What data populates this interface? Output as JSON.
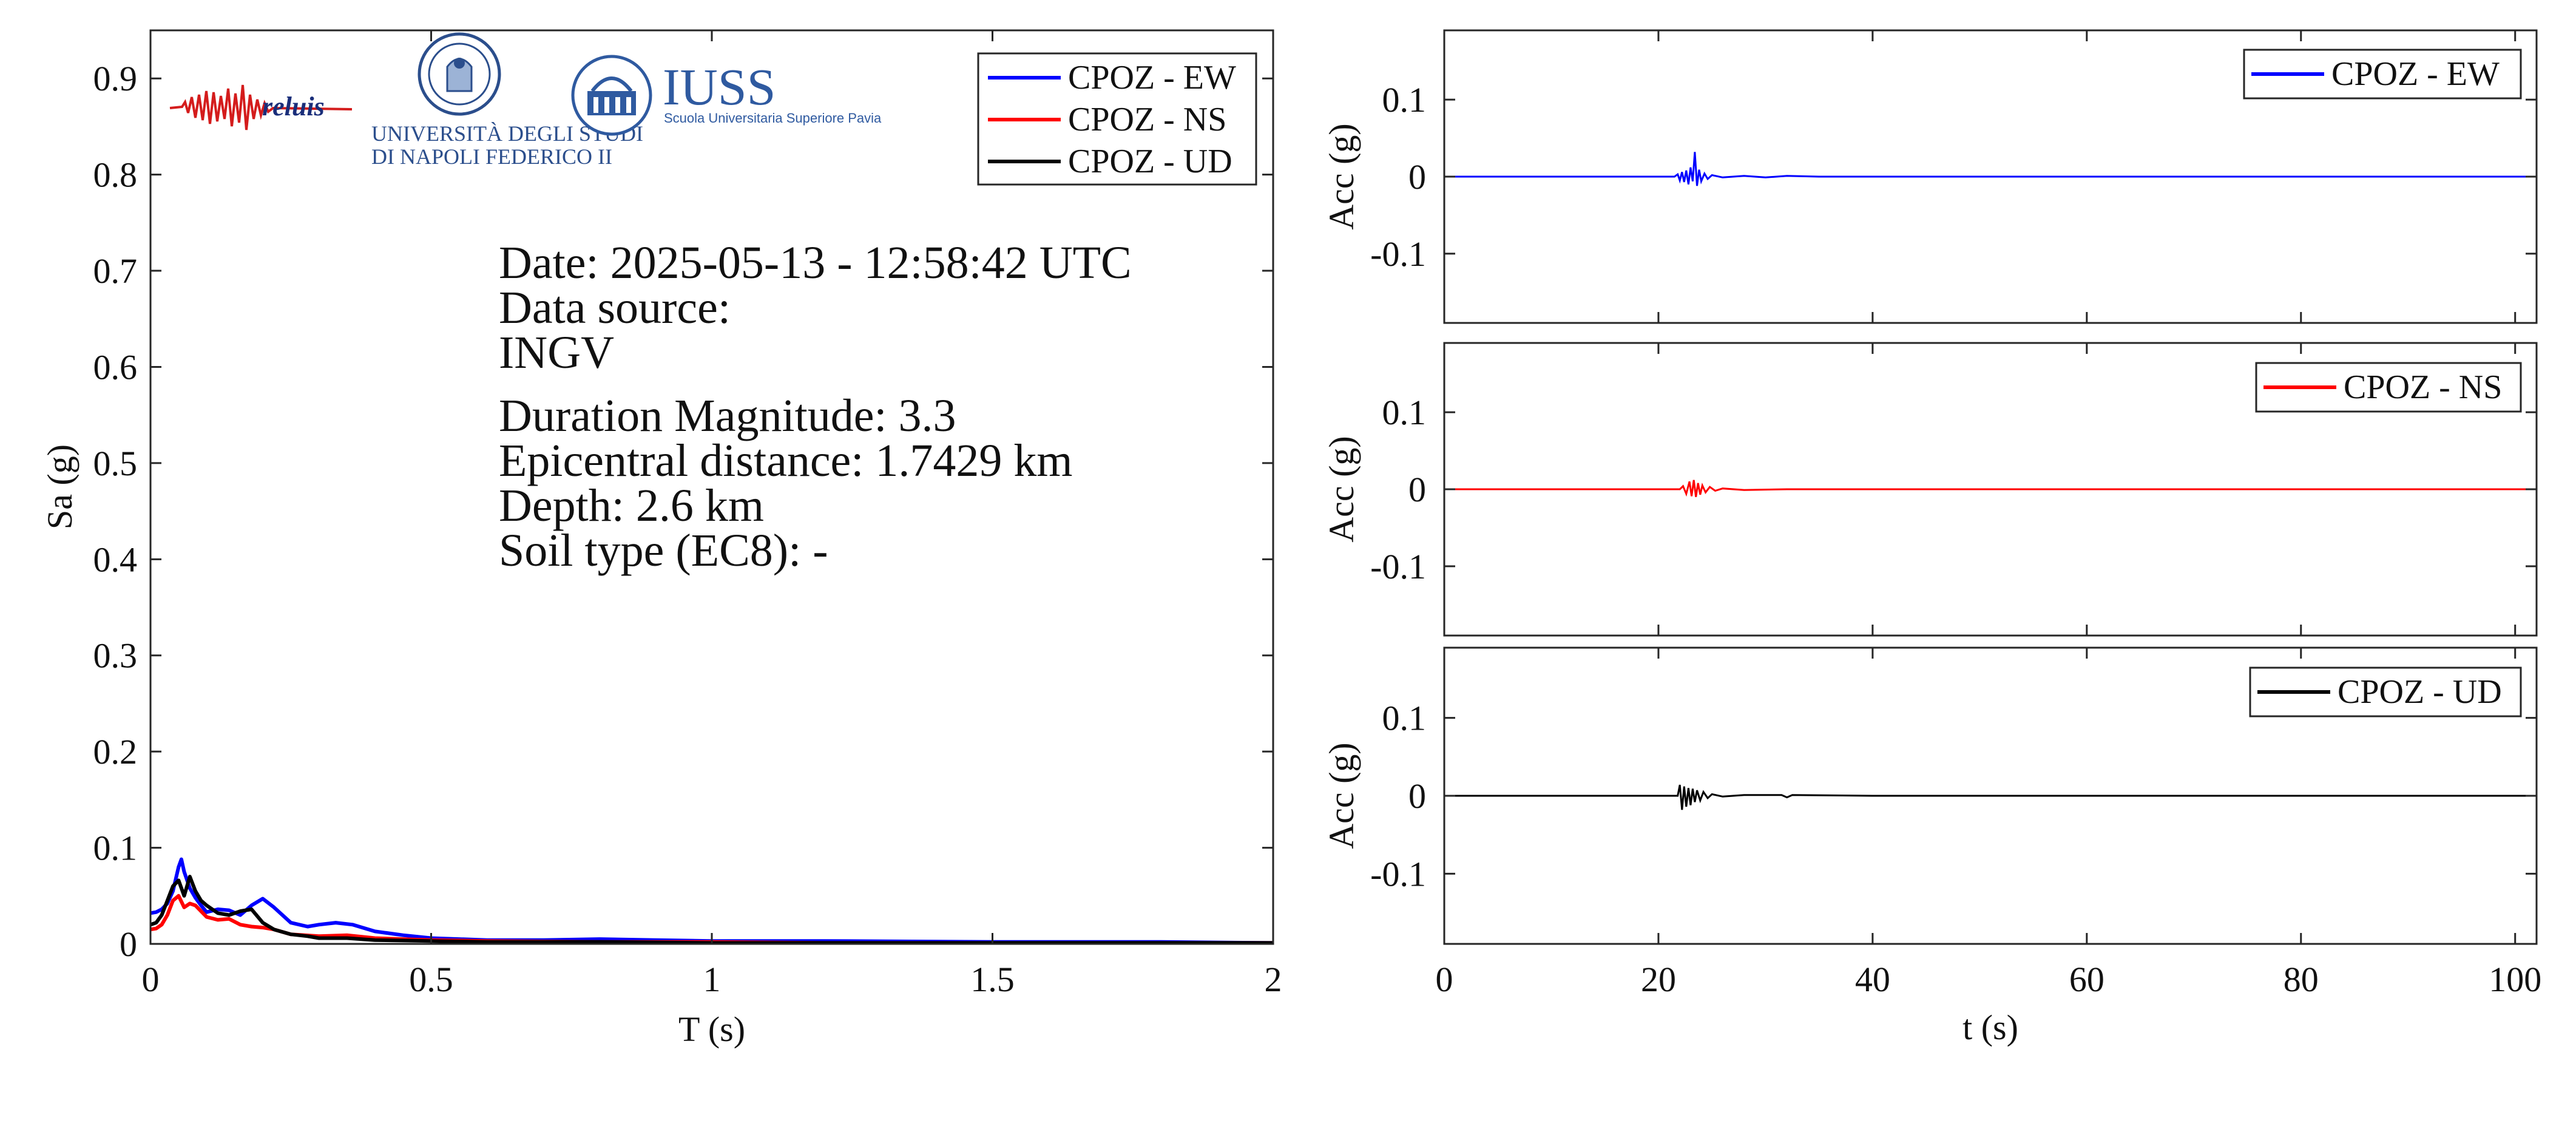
{
  "chart_data": [
    {
      "type": "line",
      "xlabel": "T (s)",
      "ylabel": "Sa (g)",
      "xlim": [
        0,
        2
      ],
      "ylim": [
        0,
        0.95
      ],
      "xticks": [
        {
          "v": 0,
          "label": "0"
        },
        {
          "v": 0.5,
          "label": "0.5"
        },
        {
          "v": 1,
          "label": "1"
        },
        {
          "v": 1.5,
          "label": "1.5"
        },
        {
          "v": 2,
          "label": "2"
        }
      ],
      "yticks": [
        {
          "v": 0,
          "label": "0"
        },
        {
          "v": 0.1,
          "label": "0.1"
        },
        {
          "v": 0.2,
          "label": "0.2"
        },
        {
          "v": 0.3,
          "label": "0.3"
        },
        {
          "v": 0.4,
          "label": "0.4"
        },
        {
          "v": 0.5,
          "label": "0.5"
        },
        {
          "v": 0.6,
          "label": "0.6"
        },
        {
          "v": 0.7,
          "label": "0.7"
        },
        {
          "v": 0.8,
          "label": "0.8"
        },
        {
          "v": 0.9,
          "label": "0.9"
        }
      ],
      "legend": "top-right",
      "grid": false,
      "series": [
        {
          "name": "CPOZ - EW",
          "color": "#0000ff",
          "x": [
            0,
            0.01,
            0.02,
            0.03,
            0.04,
            0.05,
            0.055,
            0.06,
            0.07,
            0.08,
            0.09,
            0.1,
            0.12,
            0.14,
            0.16,
            0.18,
            0.2,
            0.22,
            0.25,
            0.28,
            0.3,
            0.33,
            0.36,
            0.4,
            0.45,
            0.5,
            0.6,
            0.7,
            0.8,
            0.9,
            1.0,
            1.2,
            1.5,
            1.8,
            2.0
          ],
          "y": [
            0.032,
            0.033,
            0.036,
            0.042,
            0.055,
            0.08,
            0.088,
            0.075,
            0.058,
            0.048,
            0.04,
            0.033,
            0.036,
            0.035,
            0.03,
            0.04,
            0.047,
            0.038,
            0.022,
            0.018,
            0.02,
            0.022,
            0.02,
            0.013,
            0.009,
            0.006,
            0.004,
            0.004,
            0.005,
            0.004,
            0.003,
            0.003,
            0.002,
            0.002,
            0.001
          ]
        },
        {
          "name": "CPOZ - NS",
          "color": "#ff0000",
          "x": [
            0,
            0.01,
            0.02,
            0.03,
            0.04,
            0.05,
            0.06,
            0.07,
            0.08,
            0.09,
            0.1,
            0.12,
            0.14,
            0.16,
            0.18,
            0.2,
            0.22,
            0.25,
            0.3,
            0.35,
            0.4,
            0.5,
            0.6,
            0.8,
            1.0,
            1.2,
            1.5,
            2.0
          ],
          "y": [
            0.015,
            0.016,
            0.02,
            0.03,
            0.045,
            0.05,
            0.038,
            0.042,
            0.04,
            0.034,
            0.028,
            0.025,
            0.026,
            0.02,
            0.018,
            0.017,
            0.015,
            0.01,
            0.008,
            0.009,
            0.006,
            0.004,
            0.003,
            0.002,
            0.002,
            0.001,
            0.001,
            0.001
          ]
        },
        {
          "name": "CPOZ - UD",
          "color": "#000000",
          "x": [
            0,
            0.01,
            0.02,
            0.03,
            0.04,
            0.05,
            0.06,
            0.07,
            0.08,
            0.09,
            0.1,
            0.12,
            0.14,
            0.16,
            0.18,
            0.2,
            0.22,
            0.25,
            0.28,
            0.3,
            0.35,
            0.4,
            0.5,
            0.6,
            0.8,
            1.0,
            1.5,
            2.0
          ],
          "y": [
            0.02,
            0.022,
            0.03,
            0.045,
            0.06,
            0.066,
            0.05,
            0.07,
            0.055,
            0.045,
            0.04,
            0.032,
            0.03,
            0.034,
            0.036,
            0.022,
            0.015,
            0.01,
            0.008,
            0.006,
            0.006,
            0.004,
            0.003,
            0.002,
            0.002,
            0.001,
            0.001,
            0.001
          ]
        }
      ]
    },
    {
      "type": "line",
      "xlabel": "",
      "ylabel": "Acc (g)",
      "xlim": [
        0,
        102
      ],
      "ylim": [
        -0.19,
        0.19
      ],
      "yticks": [
        {
          "v": 0.1,
          "label": "0.1"
        },
        {
          "v": 0,
          "label": "0"
        },
        {
          "v": -0.1,
          "label": "-0.1"
        }
      ],
      "legend": "top-right",
      "series": [
        {
          "name": "CPOZ - EW",
          "color": "#0000ff",
          "t": [
            0,
            21.5,
            21.8,
            22.0,
            22.2,
            22.4,
            22.6,
            22.8,
            23.0,
            23.2,
            23.4,
            23.6,
            23.8,
            24.0,
            24.3,
            24.6,
            25.0,
            26.0,
            28.0,
            30.0,
            32.0,
            35.0,
            40.0,
            50.0,
            60.0,
            80.0,
            102.0
          ],
          "a": [
            0,
            0,
            0.003,
            -0.005,
            0.006,
            -0.007,
            0.008,
            -0.01,
            0.012,
            -0.006,
            0.032,
            -0.012,
            0.009,
            -0.006,
            0.004,
            -0.003,
            0.002,
            -0.001,
            0.001,
            -0.001,
            0.001,
            0,
            0,
            0,
            0,
            0,
            0
          ]
        }
      ]
    },
    {
      "type": "line",
      "xlabel": "",
      "ylabel": "Acc (g)",
      "xlim": [
        0,
        102
      ],
      "ylim": [
        -0.19,
        0.19
      ],
      "yticks": [
        {
          "v": 0.1,
          "label": "0.1"
        },
        {
          "v": 0,
          "label": "0"
        },
        {
          "v": -0.1,
          "label": "-0.1"
        }
      ],
      "legend": "top-right",
      "series": [
        {
          "name": "CPOZ - NS",
          "color": "#ff0000",
          "t": [
            0,
            22.0,
            22.3,
            22.6,
            22.9,
            23.1,
            23.3,
            23.5,
            23.7,
            23.9,
            24.1,
            24.4,
            24.8,
            25.3,
            26.0,
            28.0,
            32.0,
            40.0,
            60.0,
            80.0,
            102.0
          ],
          "a": [
            0,
            0,
            0.004,
            -0.006,
            0.01,
            -0.009,
            0.012,
            -0.01,
            0.008,
            -0.007,
            0.005,
            -0.004,
            0.003,
            -0.002,
            0.001,
            -0.001,
            0,
            0,
            0,
            0,
            0
          ]
        }
      ]
    },
    {
      "type": "line",
      "xlabel": "t (s)",
      "ylabel": "Acc (g)",
      "xlim": [
        0,
        102
      ],
      "ylim": [
        -0.19,
        0.19
      ],
      "xticks": [
        {
          "v": 0,
          "label": "0"
        },
        {
          "v": 20,
          "label": "20"
        },
        {
          "v": 40,
          "label": "40"
        },
        {
          "v": 60,
          "label": "60"
        },
        {
          "v": 80,
          "label": "80"
        },
        {
          "v": 100,
          "label": "100"
        }
      ],
      "yticks": [
        {
          "v": 0.1,
          "label": "0.1"
        },
        {
          "v": 0,
          "label": "0"
        },
        {
          "v": -0.1,
          "label": "-0.1"
        }
      ],
      "legend": "top-right",
      "series": [
        {
          "name": "CPOZ - UD",
          "color": "#000000",
          "t": [
            0,
            21.8,
            22.0,
            22.2,
            22.4,
            22.6,
            22.8,
            23.0,
            23.2,
            23.4,
            23.6,
            23.9,
            24.2,
            24.6,
            25.0,
            26.0,
            28.0,
            31.5,
            32.0,
            32.5,
            40.0,
            60.0,
            80.0,
            102.0
          ],
          "a": [
            0,
            0,
            0.014,
            -0.018,
            0.012,
            -0.014,
            0.01,
            -0.012,
            0.009,
            -0.008,
            0.007,
            -0.006,
            0.005,
            -0.003,
            0.002,
            -0.001,
            0.001,
            0.001,
            -0.002,
            0.001,
            0,
            0,
            0,
            0
          ]
        }
      ]
    }
  ],
  "info": {
    "date": "Date: 2025-05-13 - 12:58:42 UTC",
    "source_label": "Data source:",
    "source_value": "INGV",
    "magnitude": "Duration Magnitude: 3.3",
    "distance": "Epicentral distance: 1.7429 km",
    "depth": "Depth: 2.6 km",
    "soil": "Soil type (EC8): -"
  },
  "logos": {
    "reluis": "reluis",
    "unina_line1": "UNIVERSITÀ DEGLI STUDI",
    "unina_line2": "DI NAPOLI FEDERICO II",
    "iuss": "IUSS",
    "iuss_sub": "Scuola Universitaria Superiore Pavia"
  }
}
